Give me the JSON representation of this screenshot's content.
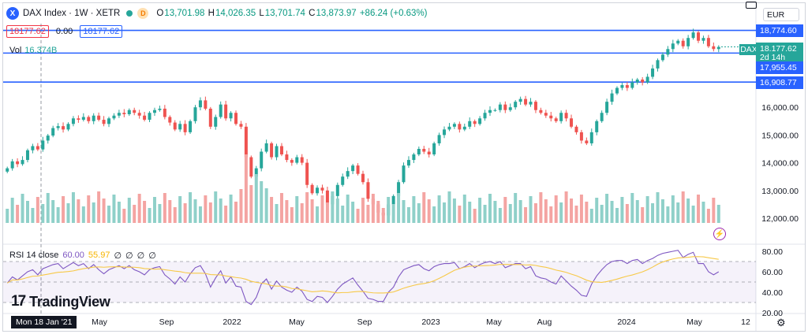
{
  "header": {
    "symbol_icon": "X",
    "title": "DAX Index · 1W · XETR",
    "market_badge": "D",
    "ohlc": {
      "o_label": "O",
      "o": "13,701.98",
      "h_label": "H",
      "h": "14,026.35",
      "l_label": "L",
      "l": "13,701.74",
      "c_label": "C",
      "c": "13,873.97",
      "change": "+86.24 (+0.63%)"
    },
    "sell_price": "18177.62",
    "spread": "0.00",
    "buy_price": "18177.62",
    "volume_label": "Vol",
    "volume_value": "16.374B",
    "currency": "EUR"
  },
  "rsi_legend": {
    "label": "RSI 14 close",
    "rsi_value": "60.00",
    "ma_value": "55.97",
    "extras": [
      "∅",
      "∅",
      "∅",
      "∅"
    ]
  },
  "price_tags": {
    "top": "18,774.60",
    "last": "18,177.62",
    "countdown": "2d 14h",
    "mid": "17,955.45",
    "low": "16,908.77",
    "symbol_short": "DAX"
  },
  "branding": "TradingView",
  "crosshair_date": "Mon 18 Jan '21",
  "icons": {
    "symbol": "dax-logo-icon",
    "camera": "camera-icon",
    "settings": "gear-icon",
    "alert": "lightning-icon",
    "logo": "tradingview-logo-icon"
  },
  "colors": {
    "up": "#26a69a",
    "down": "#ef5350",
    "vol_up": "#8fd0c9",
    "vol_down": "#f4a4a2",
    "level_line": "#2962ff",
    "rsi": "#7e57c2",
    "rsi_ma": "#f7c948"
  },
  "chart_data": [
    {
      "type": "candlestick",
      "title": "DAX Index · 1W · XETR",
      "x_ticks": [
        "May",
        "Sep",
        "2022",
        "May",
        "Sep",
        "2023",
        "May",
        "Aug",
        "2024",
        "May",
        "12"
      ],
      "y_ticks": [
        12000,
        13000,
        14000,
        15000,
        16000
      ],
      "y_tick_labels": [
        "12,000.00",
        "13,000.00",
        "14,000.00",
        "15,000.00",
        "16,000.00"
      ],
      "ylim": [
        11200,
        19100
      ],
      "horizontal_levels": [
        18774.6,
        17955.45,
        16908.77
      ],
      "last_price": 18177.62,
      "price_path_weekly_close": [
        13800,
        14050,
        13950,
        14100,
        14450,
        14600,
        14480,
        14800,
        14980,
        15250,
        15320,
        15200,
        15400,
        15600,
        15550,
        15650,
        15500,
        15700,
        15550,
        15400,
        15600,
        15700,
        15800,
        15750,
        15900,
        15800,
        15700,
        15550,
        15800,
        15900,
        15950,
        15650,
        15450,
        15200,
        15400,
        15100,
        15500,
        16000,
        16250,
        15950,
        15300,
        15650,
        16100,
        15600,
        15800,
        15400,
        15300,
        14200,
        13500,
        13800,
        14400,
        14700,
        14200,
        14600,
        14300,
        14100,
        14000,
        14200,
        14000,
        13200,
        12900,
        13100,
        13000,
        12500,
        12800,
        13200,
        13500,
        13700,
        13900,
        13600,
        13300,
        12700,
        12500,
        12200,
        12100,
        12500,
        12800,
        13300,
        13900,
        14100,
        14300,
        14500,
        14400,
        14300,
        14700,
        15000,
        15200,
        15300,
        15400,
        15200,
        15300,
        15500,
        15400,
        15600,
        15800,
        15900,
        15900,
        16100,
        15900,
        16000,
        16200,
        16300,
        16100,
        16200,
        15900,
        15800,
        15700,
        15600,
        15500,
        15800,
        15600,
        15300,
        15100,
        14800,
        14700,
        15100,
        15500,
        15800,
        16200,
        16500,
        16700,
        16800,
        16700,
        16900,
        17000,
        16900,
        17100,
        17400,
        17700,
        17900,
        18100,
        18300,
        18400,
        18200,
        18500,
        18700,
        18400,
        18500,
        18200,
        18100,
        18177
      ],
      "rsi": {
        "period": 14,
        "current": 60.0,
        "ma_current": 55.97,
        "y_ticks": [
          20,
          40,
          60,
          80
        ],
        "y_tick_labels": [
          "20.00",
          "40.00",
          "60.00",
          "80.00"
        ],
        "band": [
          30,
          70
        ],
        "series": [
          49,
          55,
          52,
          56,
          60,
          62,
          57,
          63,
          65,
          67,
          68,
          63,
          66,
          69,
          66,
          68,
          63,
          67,
          62,
          58,
          62,
          64,
          66,
          63,
          66,
          62,
          60,
          57,
          62,
          64,
          65,
          57,
          53,
          48,
          55,
          50,
          58,
          64,
          66,
          58,
          45,
          54,
          61,
          49,
          55,
          46,
          45,
          31,
          28,
          35,
          48,
          53,
          43,
          51,
          45,
          42,
          40,
          45,
          41,
          33,
          31,
          36,
          35,
          30,
          36,
          43,
          48,
          51,
          54,
          47,
          41,
          34,
          33,
          31,
          31,
          40,
          45,
          55,
          62,
          64,
          66,
          67,
          63,
          61,
          65,
          67,
          68,
          68,
          69,
          63,
          65,
          68,
          64,
          67,
          69,
          70,
          68,
          70,
          64,
          66,
          68,
          68,
          63,
          65,
          56,
          54,
          53,
          50,
          48,
          56,
          51,
          46,
          42,
          37,
          36,
          48,
          56,
          62,
          67,
          70,
          71,
          71,
          68,
          71,
          72,
          68,
          71,
          73,
          76,
          78,
          79,
          80,
          81,
          74,
          77,
          79,
          68,
          68,
          60,
          57,
          60
        ]
      }
    }
  ]
}
